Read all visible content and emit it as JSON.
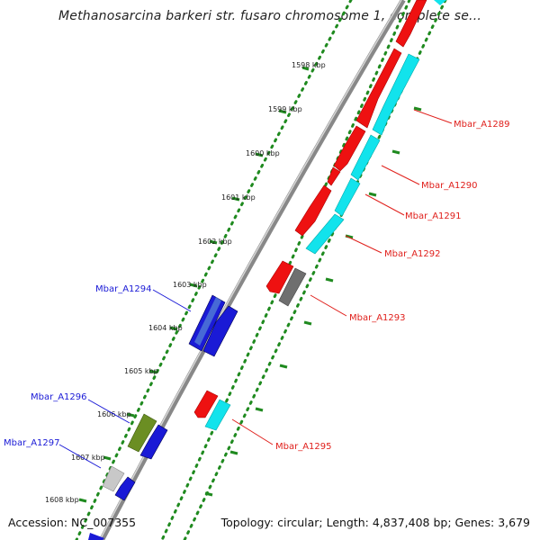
{
  "title": "Methanosarcina barkeri str. fusaro chromosome 1, complete se...",
  "footer": {
    "accession": "Accession: NC_007355",
    "summary": "Topology: circular; Length: 4,837,408 bp; Genes: 3,679"
  },
  "ticks": [
    {
      "label": "1598 kbp"
    },
    {
      "label": "1599 kbp"
    },
    {
      "label": "1600 kbp"
    },
    {
      "label": "1601 kbp"
    },
    {
      "label": "1602 kbp"
    },
    {
      "label": "1603 kbp"
    },
    {
      "label": "1604 kbp"
    },
    {
      "label": "1605 kbp"
    },
    {
      "label": "1606 kbp"
    },
    {
      "label": "1607 kbp"
    },
    {
      "label": "1608 kbp"
    }
  ],
  "genes": [
    {
      "name": "Mbar_A1289",
      "strand": "right",
      "color": "#e0201c"
    },
    {
      "name": "Mbar_A1290",
      "strand": "right",
      "color": "#e0201c"
    },
    {
      "name": "Mbar_A1291",
      "strand": "right",
      "color": "#e0201c"
    },
    {
      "name": "Mbar_A1292",
      "strand": "right",
      "color": "#e0201c"
    },
    {
      "name": "Mbar_A1293",
      "strand": "right",
      "color": "#e0201c"
    },
    {
      "name": "Mbar_A1294",
      "strand": "left",
      "color": "#1a1ad6"
    },
    {
      "name": "Mbar_A1295",
      "strand": "right",
      "color": "#e0201c"
    },
    {
      "name": "Mbar_A1296",
      "strand": "left",
      "color": "#1a1ad6"
    },
    {
      "name": "Mbar_A1297",
      "strand": "left",
      "color": "#1a1ad6"
    }
  ],
  "colors": {
    "gene_red": "#ee1111",
    "gene_blue": "#1a1ad6",
    "cds_cyan": "#12e3ec",
    "cds_olive": "#6b8e23",
    "cds_gray": "#7a7a7a",
    "cds_light_gray": "#c8c8c8",
    "backbone": "#8a8a8a",
    "guide_dots": "#1f8a1f"
  }
}
